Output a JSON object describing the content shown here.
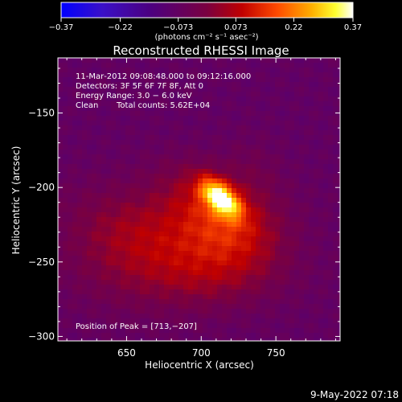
{
  "chart_data": {
    "type": "heatmap",
    "title": "Reconstructed RHESSI Image",
    "xlabel": "Heliocentric X (arcsec)",
    "ylabel": "Heliocentric Y (arcsec)",
    "xlim": [
      604,
      793
    ],
    "ylim": [
      -303,
      -113
    ],
    "x_ticks": [
      650,
      700,
      750
    ],
    "y_ticks": [
      -150,
      -200,
      -250,
      -300
    ],
    "x_tick_labels": [
      "650",
      "700",
      "750"
    ],
    "y_tick_labels": [
      "−150",
      "−200",
      "−250",
      "−300"
    ],
    "colorbar": {
      "range": [
        -0.37,
        0.37
      ],
      "ticks": [
        -0.37,
        -0.22,
        -0.073,
        0.073,
        0.22,
        0.37
      ],
      "tick_labels": [
        "−0.37",
        "−0.22",
        "−0.073",
        "0.073",
        "0.22",
        "0.37"
      ],
      "unit_label": "(photons cm⁻² s⁻¹ asec⁻²)",
      "colormap": [
        "#0000ff",
        "#4b0082",
        "#7a0055",
        "#c00000",
        "#ff5000",
        "#ffb000",
        "#ffff00",
        "#ffffff"
      ]
    },
    "annotations": {
      "time_range": "11‑Mar‑2012 09:08:48.000 to 09:12:16.000",
      "detectors": "Detectors: 3F 5F 6F 7F 8F, Att 0",
      "energy_range": "Energy Range: 3.0 − 6.0 keV",
      "clean_label": "Clean",
      "total_counts": "Total counts: 5.62E+04",
      "peak_position": "Position of Peak = [713,−207]"
    },
    "peak": {
      "x": 713,
      "y": -207,
      "value": 0.37
    },
    "grid": false
  },
  "footer": {
    "date": "9‑May‑2022 07:18"
  }
}
